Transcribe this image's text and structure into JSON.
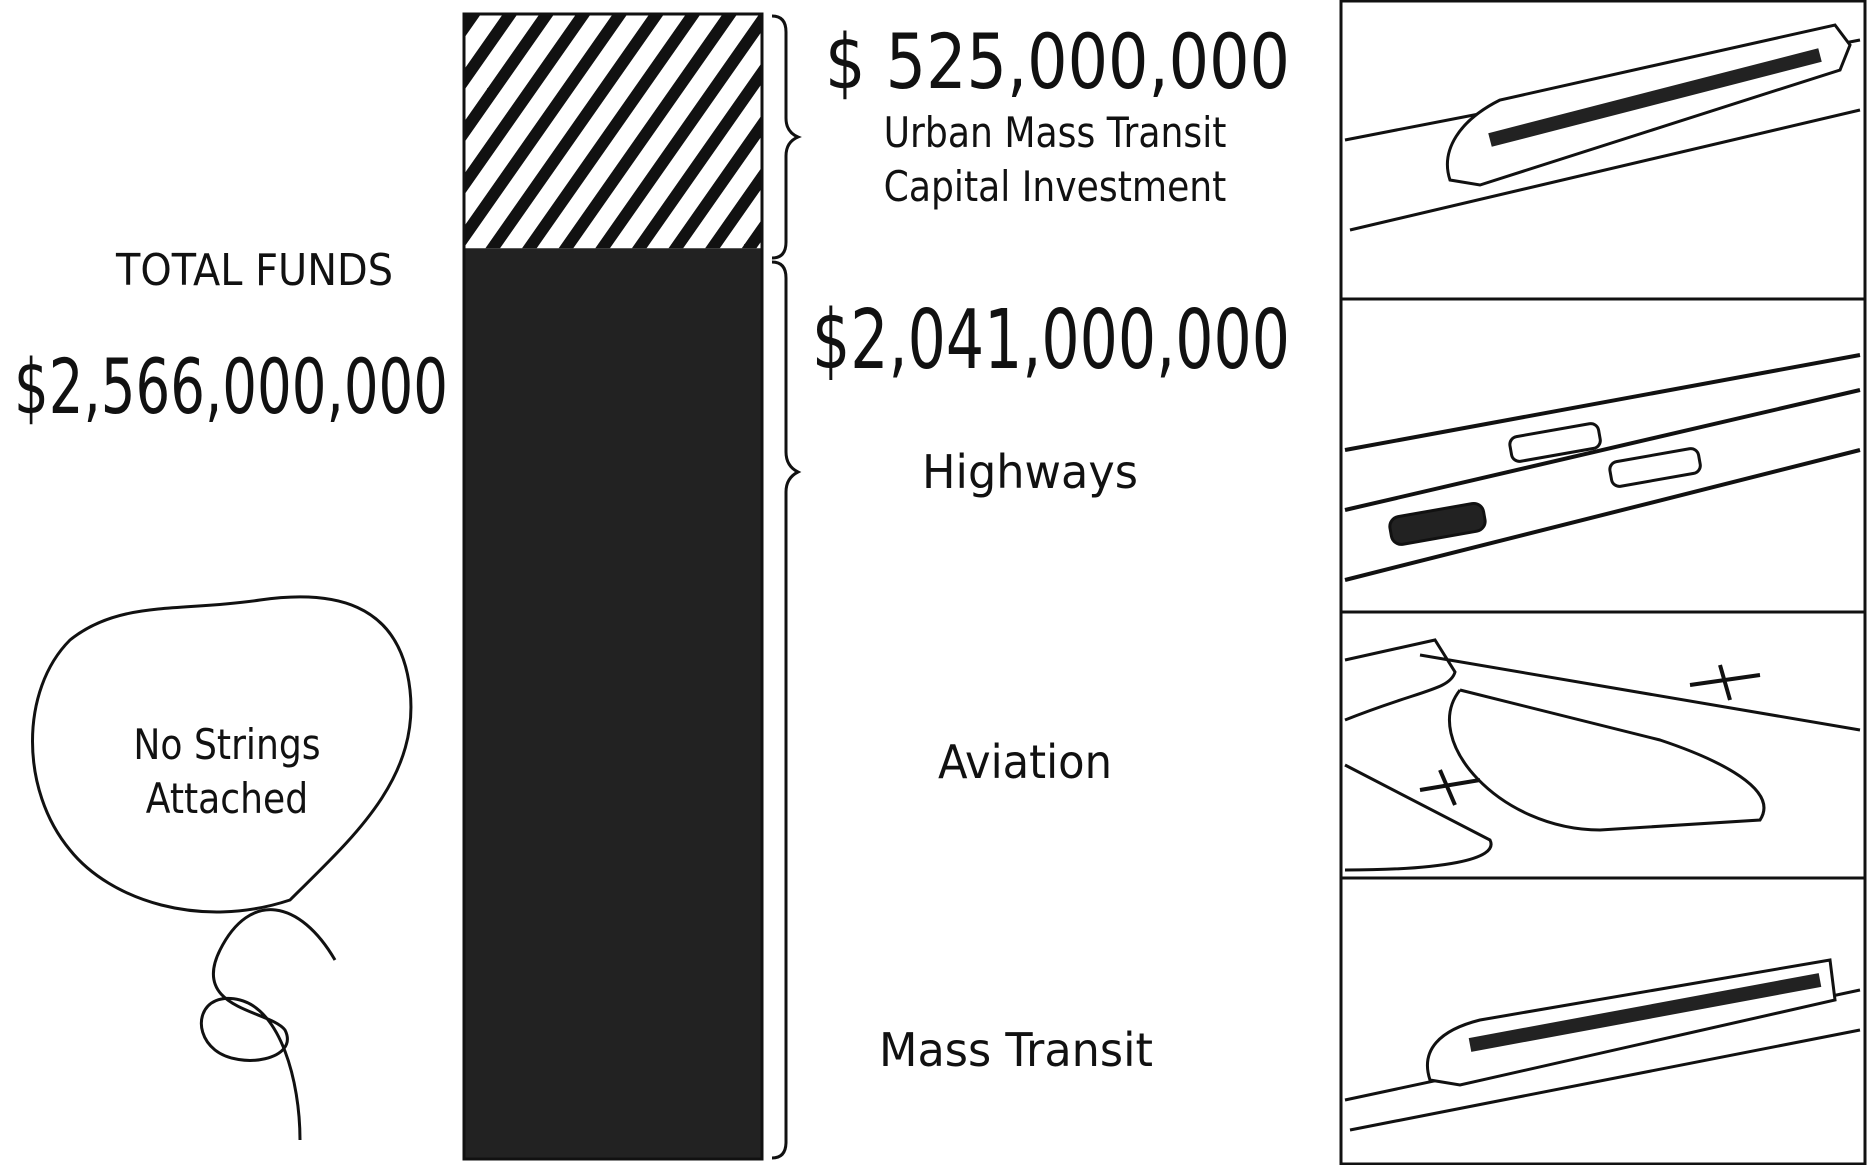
{
  "chart_data": {
    "type": "stacked-column",
    "total": {
      "label": "TOTAL FUNDS",
      "value": 2566000000,
      "value_label": "$2,566,000,000"
    },
    "series": [
      {
        "name": "Urban Mass Transit Capital Investment",
        "values": [
          525000000
        ],
        "value_labels": [
          "$ 525,000,000"
        ],
        "pattern": "hatch"
      },
      {
        "values": [
          2041000000
        ],
        "value_labels": [
          "$2,041,000,000"
        ],
        "uses": [
          "Highways",
          "Aviation",
          "Mass Transit"
        ],
        "color": "#222222"
      }
    ],
    "annotation": "No Strings Attached"
  }
}
